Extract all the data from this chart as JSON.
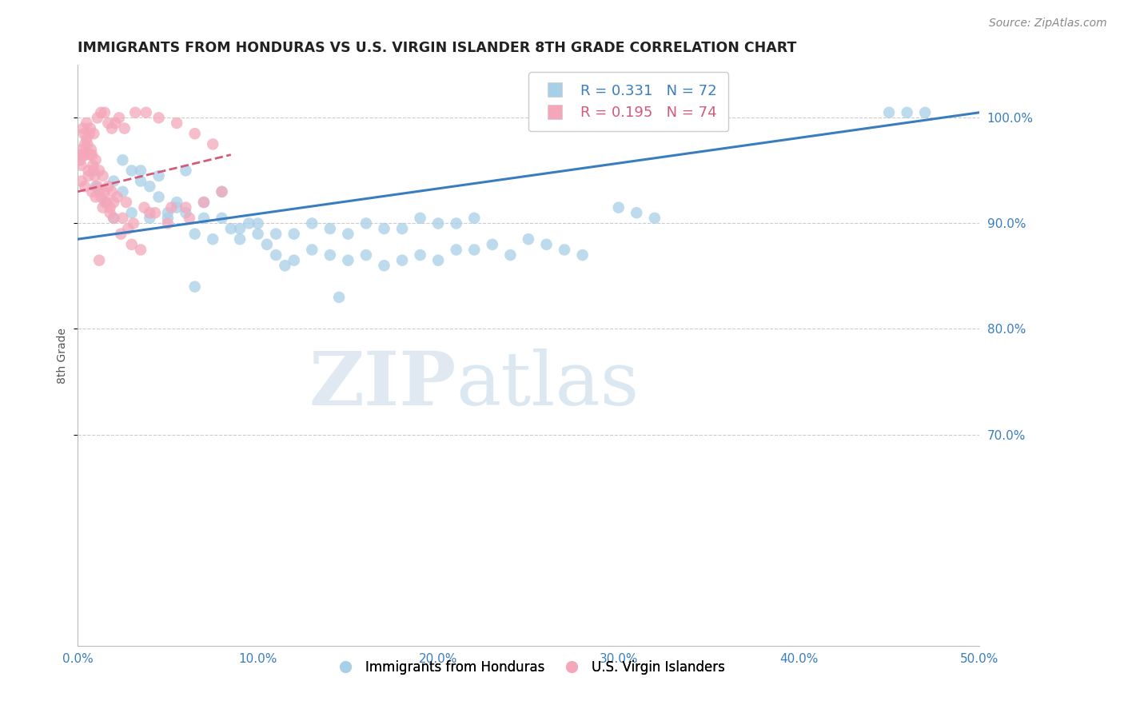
{
  "title": "IMMIGRANTS FROM HONDURAS VS U.S. VIRGIN ISLANDER 8TH GRADE CORRELATION CHART",
  "source": "Source: ZipAtlas.com",
  "ylabel": "8th Grade",
  "xlim": [
    0.0,
    50.0
  ],
  "ylim": [
    50.0,
    105.0
  ],
  "yticks": [
    70.0,
    80.0,
    90.0,
    100.0
  ],
  "blue_R": 0.331,
  "blue_N": 72,
  "pink_R": 0.195,
  "pink_N": 74,
  "blue_color": "#a8cfe8",
  "pink_color": "#f4a7b9",
  "blue_line_color": "#3a7dbf",
  "pink_line_color": "#d45a7a",
  "watermark_zip": "ZIP",
  "watermark_atlas": "atlas",
  "legend_label_blue": "Immigrants from Honduras",
  "legend_label_pink": "U.S. Virgin Islanders",
  "blue_trend_x0": 0.0,
  "blue_trend_y0": 88.5,
  "blue_trend_x1": 50.0,
  "blue_trend_y1": 100.5,
  "pink_trend_x0": 0.0,
  "pink_trend_y0": 93.0,
  "pink_trend_x1": 8.5,
  "pink_trend_y1": 96.5,
  "blue_x": [
    1.0,
    1.5,
    2.0,
    2.0,
    2.5,
    3.0,
    3.5,
    4.0,
    4.5,
    5.0,
    5.5,
    6.0,
    6.5,
    7.0,
    7.5,
    8.0,
    8.5,
    9.0,
    9.5,
    10.0,
    10.5,
    11.0,
    11.5,
    12.0,
    13.0,
    14.0,
    15.0,
    16.0,
    17.0,
    18.0,
    19.0,
    20.0,
    21.0,
    22.0,
    23.0,
    24.0,
    25.0,
    26.0,
    27.0,
    28.0,
    3.0,
    4.0,
    5.0,
    6.0,
    7.0,
    8.0,
    9.0,
    10.0,
    11.0,
    12.0,
    13.0,
    14.0,
    15.0,
    16.0,
    17.0,
    18.0,
    19.0,
    20.0,
    21.0,
    22.0,
    45.0,
    46.0,
    47.0,
    30.0,
    31.0,
    32.0,
    2.5,
    3.5,
    4.5,
    5.5,
    6.5,
    14.5
  ],
  "blue_y": [
    93.5,
    92.0,
    94.0,
    90.5,
    93.0,
    95.0,
    94.0,
    93.5,
    94.5,
    91.0,
    92.0,
    95.0,
    89.0,
    90.5,
    88.5,
    93.0,
    89.5,
    88.5,
    90.0,
    89.0,
    88.0,
    87.0,
    86.0,
    86.5,
    87.5,
    87.0,
    86.5,
    87.0,
    86.0,
    86.5,
    87.0,
    86.5,
    87.5,
    87.5,
    88.0,
    87.0,
    88.5,
    88.0,
    87.5,
    87.0,
    91.0,
    90.5,
    90.5,
    91.0,
    92.0,
    90.5,
    89.5,
    90.0,
    89.0,
    89.0,
    90.0,
    89.5,
    89.0,
    90.0,
    89.5,
    89.5,
    90.5,
    90.0,
    90.0,
    90.5,
    100.5,
    100.5,
    100.5,
    91.5,
    91.0,
    90.5,
    96.0,
    95.0,
    92.5,
    91.5,
    84.0,
    83.0
  ],
  "pink_x": [
    0.1,
    0.15,
    0.2,
    0.25,
    0.3,
    0.35,
    0.4,
    0.45,
    0.5,
    0.55,
    0.6,
    0.65,
    0.7,
    0.75,
    0.8,
    0.85,
    0.9,
    0.95,
    1.0,
    1.1,
    1.2,
    1.3,
    1.4,
    1.5,
    1.6,
    1.7,
    1.8,
    1.9,
    2.0,
    2.2,
    2.5,
    2.8,
    3.0,
    3.5,
    4.0,
    5.0,
    6.0,
    7.0,
    8.0,
    0.3,
    0.5,
    0.7,
    0.9,
    1.1,
    1.3,
    1.5,
    1.7,
    1.9,
    2.1,
    2.3,
    2.6,
    3.2,
    3.8,
    4.5,
    5.5,
    6.5,
    7.5,
    0.2,
    0.4,
    0.6,
    0.8,
    1.0,
    1.2,
    1.4,
    1.6,
    1.8,
    2.0,
    2.4,
    2.7,
    3.1,
    3.7,
    4.3,
    5.2,
    6.2
  ],
  "pink_y": [
    96.5,
    96.0,
    95.5,
    97.0,
    96.5,
    98.5,
    97.5,
    96.5,
    98.0,
    97.5,
    95.0,
    98.5,
    96.5,
    97.0,
    96.5,
    95.5,
    95.0,
    94.5,
    96.0,
    93.5,
    95.0,
    92.5,
    94.5,
    93.0,
    92.0,
    93.5,
    91.5,
    93.0,
    92.0,
    92.5,
    90.5,
    89.5,
    88.0,
    87.5,
    91.0,
    90.0,
    91.5,
    92.0,
    93.0,
    99.0,
    99.5,
    99.0,
    98.5,
    100.0,
    100.5,
    100.5,
    99.5,
    99.0,
    99.5,
    100.0,
    99.0,
    100.5,
    100.5,
    100.0,
    99.5,
    98.5,
    97.5,
    94.0,
    93.5,
    94.5,
    93.0,
    92.5,
    93.0,
    91.5,
    92.0,
    91.0,
    90.5,
    89.0,
    92.0,
    90.0,
    91.5,
    91.0,
    91.5,
    90.5
  ],
  "pink_lone_x": [
    1.2
  ],
  "pink_lone_y": [
    86.5
  ]
}
